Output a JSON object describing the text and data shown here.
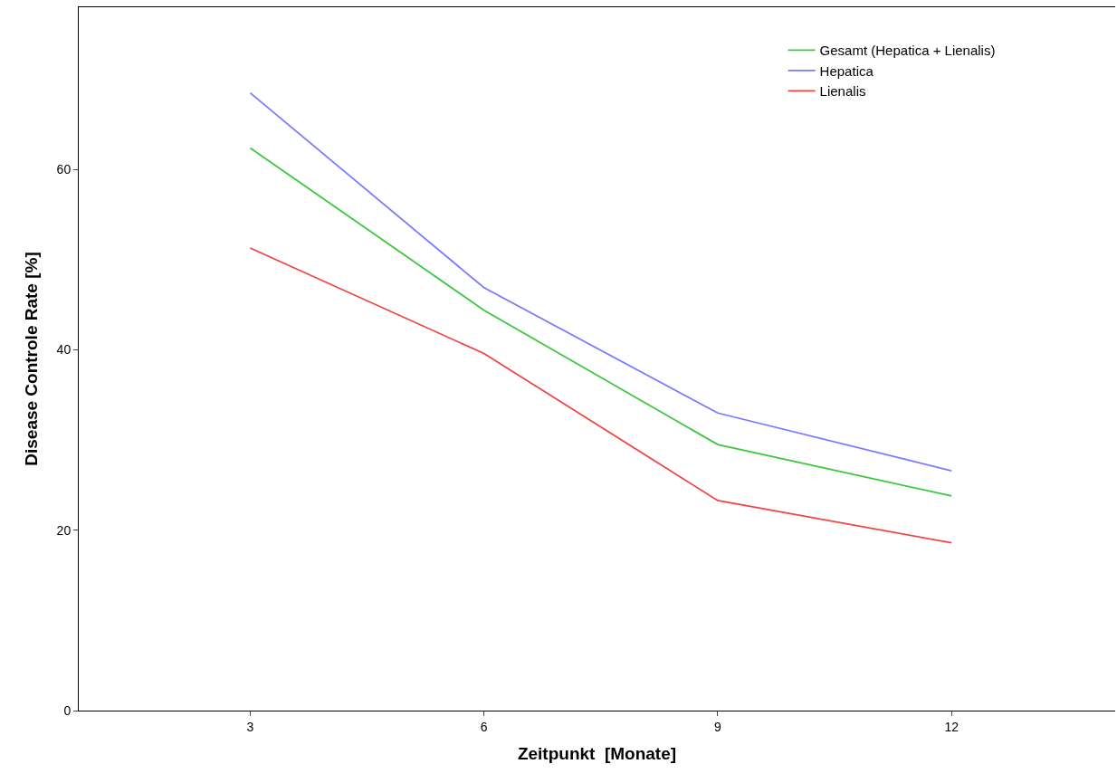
{
  "chart_data": {
    "type": "line",
    "xlabel": "Zeitpunkt  [Monate]",
    "ylabel": "Disease Controle Rate [%]",
    "x": [
      3,
      6,
      9,
      12
    ],
    "series": [
      {
        "name": "Gesamt (Hepatica + Lienalis)",
        "color": "#3ec63e",
        "values": [
          62.4,
          44.4,
          29.5,
          23.8
        ]
      },
      {
        "name": "Hepatica",
        "color": "#7a7aff",
        "values": [
          68.5,
          46.9,
          33.0,
          26.6
        ]
      },
      {
        "name": "Lienalis",
        "color": "#f04545",
        "values": [
          51.3,
          39.6,
          23.3,
          18.6
        ]
      }
    ],
    "xlim": [
      0.8,
      14.1
    ],
    "xticks": [
      3,
      6,
      9,
      12
    ],
    "ylim": [
      0,
      78
    ],
    "yticks": [
      0,
      20,
      40,
      60
    ],
    "legend": "top right",
    "marker": "none",
    "line_style": "solid"
  }
}
